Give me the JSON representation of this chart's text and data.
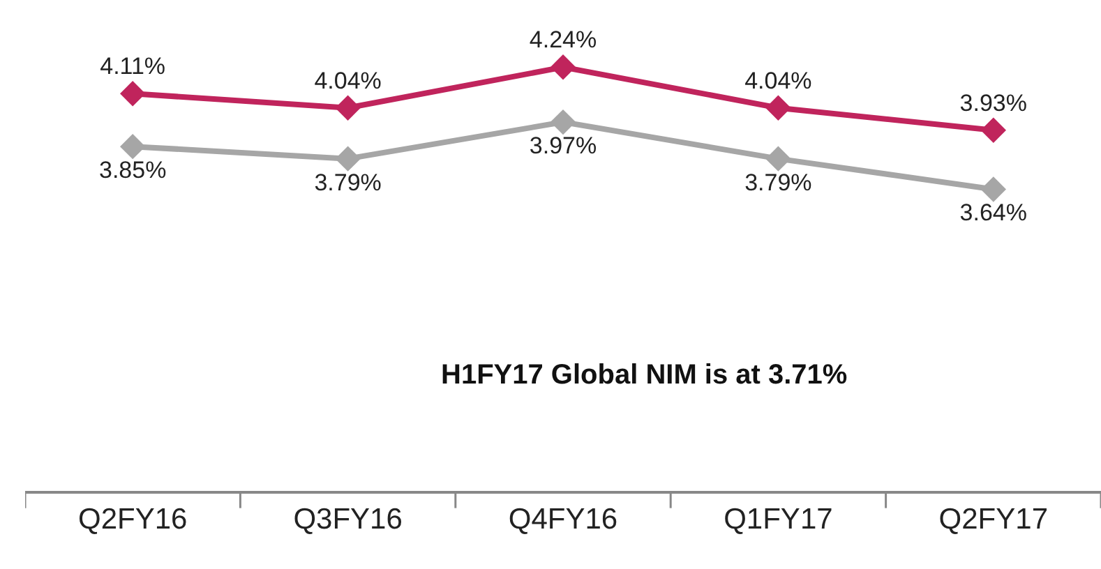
{
  "chart_data": {
    "type": "line",
    "categories": [
      "Q2FY16",
      "Q3FY16",
      "Q4FY16",
      "Q1FY17",
      "Q2FY17"
    ],
    "series": [
      {
        "color": "#c0245c",
        "values": [
          4.11,
          4.04,
          4.24,
          4.04,
          3.93
        ],
        "value_labels": [
          "4.11%",
          "4.04%",
          "4.24%",
          "4.04%",
          "3.93%"
        ]
      },
      {
        "color": "#a6a6a6",
        "values": [
          3.85,
          3.79,
          3.97,
          3.79,
          3.64
        ],
        "value_labels": [
          "3.85%",
          "3.79%",
          "3.97%",
          "3.79%",
          "3.64%"
        ]
      }
    ],
    "tick_labels": "x",
    "marker": "diamond",
    "line_style": "solid",
    "annotations": [
      "H1FY17 Global NIM is at 3.71%"
    ]
  }
}
